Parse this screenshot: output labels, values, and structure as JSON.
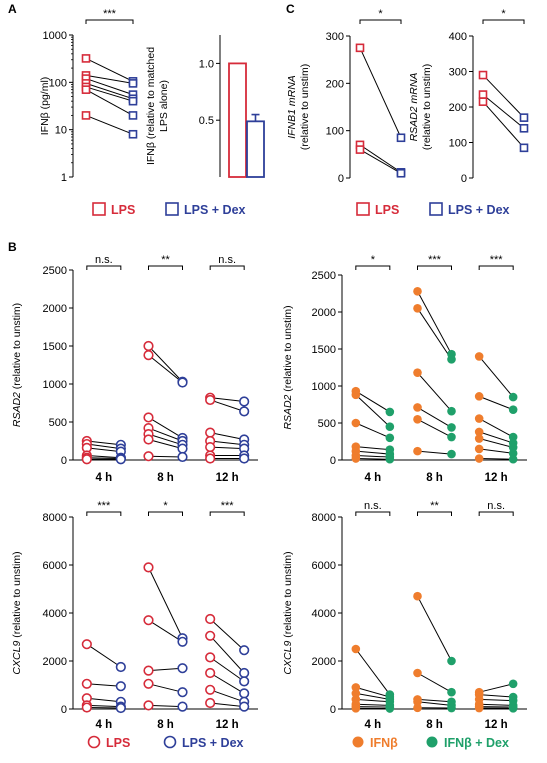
{
  "panels": [
    {
      "label": "A"
    },
    {
      "label": "B"
    },
    {
      "label": "C"
    }
  ],
  "legends": {
    "open_squares": {
      "a": "LPS",
      "b": "LPS + Dex"
    },
    "open_circles": {
      "a": "LPS",
      "b": "LPS + Dex"
    },
    "filled_circles": {
      "a": "IFNβ",
      "b": "IFNβ + Dex"
    }
  },
  "colors": {
    "lps": "#d62b3a",
    "dex_blue": "#2e3f99",
    "ifnb": "#ef7d2d",
    "dex_green": "#1fa06a"
  },
  "chart_data": [
    {
      "id": "a1",
      "type": "scatter",
      "scale": "log",
      "ylabel": "IFNβ (pg/ml)",
      "ylim": [
        1,
        1000
      ],
      "yticks": [
        1,
        10,
        100,
        1000
      ],
      "ytick_labels": [
        "1",
        "10",
        "100",
        "1000"
      ],
      "significance": [
        "***"
      ],
      "pairs": [
        [
          320,
          105
        ],
        [
          140,
          95
        ],
        [
          120,
          55
        ],
        [
          95,
          45
        ],
        [
          80,
          40
        ],
        [
          70,
          20
        ],
        [
          20,
          8
        ]
      ]
    },
    {
      "id": "a2",
      "type": "bar",
      "ylabel_line1": "IFNβ (relative to matched",
      "ylabel_line2": "LPS alone)",
      "ylim": [
        0,
        1.25
      ],
      "yticks": [
        0.5,
        1.0
      ],
      "ytick_labels": [
        "0.5",
        "1.0"
      ],
      "categories": [
        "LPS",
        "LPS + Dex"
      ],
      "values": [
        1.0,
        0.49
      ],
      "errors": [
        0,
        0.06
      ]
    },
    {
      "id": "c1",
      "type": "scatter",
      "ylabel_line1": "IFNB1 mRNA",
      "ylabel_line2": "(relative to unstim)",
      "ylim": [
        0,
        300
      ],
      "yticks": [
        0,
        100,
        200,
        300
      ],
      "ytick_labels": [
        "0",
        "100",
        "200",
        "300"
      ],
      "significance": [
        "*"
      ],
      "pairs": [
        [
          275,
          85
        ],
        [
          70,
          12
        ],
        [
          60,
          10
        ]
      ]
    },
    {
      "id": "c2",
      "type": "scatter",
      "ylabel_line1": "RSAD2 mRNA",
      "ylabel_line2": "(relative to unstim)",
      "ylim": [
        0,
        400
      ],
      "yticks": [
        0,
        100,
        200,
        300,
        400
      ],
      "ytick_labels": [
        "0",
        "100",
        "200",
        "300",
        "400"
      ],
      "significance": [
        "*"
      ],
      "pairs": [
        [
          290,
          170
        ],
        [
          235,
          140
        ],
        [
          215,
          85
        ]
      ]
    },
    {
      "id": "b1",
      "type": "scatter",
      "ylabel_line1": "RSAD2",
      "ylabel_line2": " (relative to unstim)",
      "ylim": [
        0,
        2500
      ],
      "yticks": [
        0,
        500,
        1000,
        1500,
        2000,
        2500
      ],
      "ytick_labels": [
        "0",
        "500",
        "1000",
        "1500",
        "2000",
        "2500"
      ],
      "categories": [
        "4 h",
        "8 h",
        "12 h"
      ],
      "significance": [
        "n.s.",
        "**",
        "n.s."
      ],
      "groups": [
        [
          [
            250,
            200
          ],
          [
            210,
            150
          ],
          [
            160,
            110
          ],
          [
            60,
            30
          ],
          [
            30,
            20
          ],
          [
            10,
            10
          ]
        ],
        [
          [
            1500,
            1030
          ],
          [
            1380,
            1020
          ],
          [
            560,
            290
          ],
          [
            420,
            250
          ],
          [
            340,
            200
          ],
          [
            270,
            150
          ],
          [
            50,
            40
          ]
        ],
        [
          [
            820,
            770
          ],
          [
            790,
            640
          ],
          [
            360,
            270
          ],
          [
            250,
            200
          ],
          [
            170,
            150
          ],
          [
            60,
            60
          ],
          [
            20,
            20
          ]
        ]
      ]
    },
    {
      "id": "b2",
      "type": "scatter",
      "ylabel_line1": "RSAD2",
      "ylabel_line2": " (relative to unstim)",
      "ylim": [
        0,
        2500
      ],
      "yticks": [
        0,
        500,
        1000,
        1500,
        2000,
        2500
      ],
      "ytick_labels": [
        "0",
        "500",
        "1000",
        "1500",
        "2000",
        "2500"
      ],
      "categories": [
        "4 h",
        "8 h",
        "12 h"
      ],
      "significance": [
        "*",
        "***",
        "***"
      ],
      "groups": [
        [
          [
            930,
            650
          ],
          [
            880,
            450
          ],
          [
            500,
            300
          ],
          [
            180,
            140
          ],
          [
            120,
            80
          ],
          [
            60,
            40
          ],
          [
            20,
            10
          ]
        ],
        [
          [
            2280,
            1430
          ],
          [
            2050,
            1360
          ],
          [
            1180,
            660
          ],
          [
            710,
            440
          ],
          [
            550,
            310
          ],
          [
            120,
            80
          ]
        ],
        [
          [
            1400,
            850
          ],
          [
            860,
            680
          ],
          [
            560,
            310
          ],
          [
            380,
            230
          ],
          [
            290,
            170
          ],
          [
            150,
            90
          ],
          [
            20,
            10
          ]
        ]
      ]
    },
    {
      "id": "b3",
      "type": "scatter",
      "ylabel_line1": "CXCL9",
      "ylabel_line2": " (relative to unstim)",
      "ylim": [
        0,
        8000
      ],
      "yticks": [
        0,
        2000,
        4000,
        6000,
        8000
      ],
      "ytick_labels": [
        "0",
        "2000",
        "4000",
        "6000",
        "8000"
      ],
      "categories": [
        "4 h",
        "8 h",
        "12 h"
      ],
      "significance": [
        "***",
        "*",
        "***"
      ],
      "groups": [
        [
          [
            2700,
            1750
          ],
          [
            1050,
            950
          ],
          [
            450,
            300
          ],
          [
            150,
            100
          ],
          [
            60,
            40
          ]
        ],
        [
          [
            5900,
            2950
          ],
          [
            3700,
            2800
          ],
          [
            1600,
            1700
          ],
          [
            1050,
            700
          ],
          [
            150,
            100
          ]
        ],
        [
          [
            3750,
            2450
          ],
          [
            3050,
            1500
          ],
          [
            2150,
            1150
          ],
          [
            1500,
            650
          ],
          [
            800,
            300
          ],
          [
            250,
            100
          ]
        ]
      ]
    },
    {
      "id": "b4",
      "type": "scatter",
      "ylabel_line1": "CXCL9",
      "ylabel_line2": " (relative to unstim)",
      "ylim": [
        0,
        8000
      ],
      "yticks": [
        0,
        2000,
        4000,
        6000,
        8000
      ],
      "ytick_labels": [
        "0",
        "2000",
        "4000",
        "6000",
        "8000"
      ],
      "categories": [
        "4 h",
        "8 h",
        "12 h"
      ],
      "significance": [
        "n.s.",
        "**",
        "n.s."
      ],
      "groups": [
        [
          [
            2500,
            600
          ],
          [
            900,
            500
          ],
          [
            650,
            400
          ],
          [
            400,
            300
          ],
          [
            200,
            150
          ],
          [
            100,
            80
          ],
          [
            30,
            20
          ]
        ],
        [
          [
            4700,
            2000
          ],
          [
            1500,
            700
          ],
          [
            400,
            300
          ],
          [
            300,
            150
          ],
          [
            50,
            40
          ]
        ],
        [
          [
            700,
            1050
          ],
          [
            600,
            500
          ],
          [
            400,
            350
          ],
          [
            200,
            150
          ],
          [
            100,
            80
          ],
          [
            40,
            30
          ]
        ]
      ]
    }
  ]
}
